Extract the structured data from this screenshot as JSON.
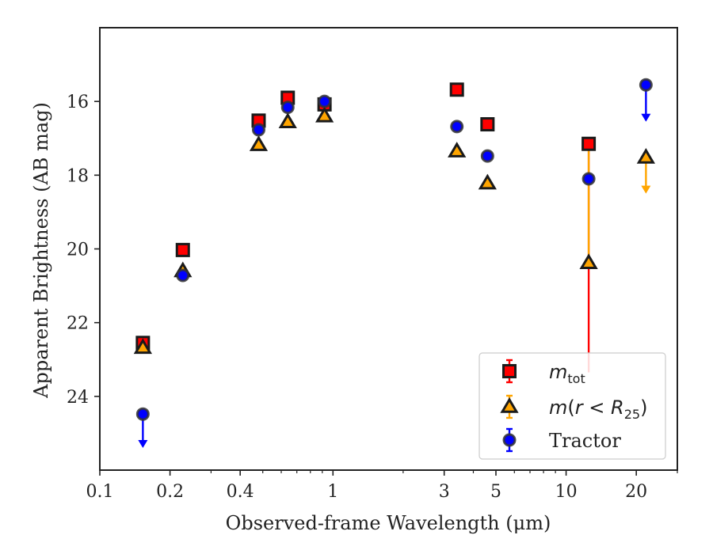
{
  "chart_data": {
    "type": "scatter",
    "xlabel": "Observed-frame Wavelength (μm)",
    "ylabel": "Apparent Brightness (AB mag)",
    "x_scale": "log",
    "xlim": [
      0.1,
      30
    ],
    "ylim": [
      26.0,
      14.0
    ],
    "y_inverted": true,
    "x_ticks": [
      {
        "value": 0.1,
        "label": "0.1"
      },
      {
        "value": 0.2,
        "label": "0.2"
      },
      {
        "value": 0.4,
        "label": "0.4"
      },
      {
        "value": 1,
        "label": "1"
      },
      {
        "value": 3,
        "label": "3"
      },
      {
        "value": 5,
        "label": "5"
      },
      {
        "value": 10,
        "label": "10"
      },
      {
        "value": 20,
        "label": "20"
      }
    ],
    "x_minor_ticks": [
      0.3,
      0.5,
      0.6,
      0.7,
      0.8,
      0.9,
      2,
      4,
      6,
      7,
      8,
      9,
      30
    ],
    "y_ticks": [
      {
        "value": 16,
        "label": "16"
      },
      {
        "value": 18,
        "label": "18"
      },
      {
        "value": 20,
        "label": "20"
      },
      {
        "value": 22,
        "label": "22"
      },
      {
        "value": 24,
        "label": "24"
      }
    ],
    "grid": false,
    "legend_position": "bottom-right",
    "series": [
      {
        "name": "m_tot",
        "marker": "square",
        "color": "#ff0000",
        "edge_color": "#1a1a1a",
        "errorbar_color": "#ff0000",
        "points": [
          {
            "x": 0.153,
            "y": 22.55
          },
          {
            "x": 0.227,
            "y": 20.03
          },
          {
            "x": 0.48,
            "y": 16.52
          },
          {
            "x": 0.64,
            "y": 15.9
          },
          {
            "x": 0.92,
            "y": 16.08
          },
          {
            "x": 3.4,
            "y": 15.68
          },
          {
            "x": 4.6,
            "y": 16.62
          },
          {
            "x": 12.5,
            "y": 17.15,
            "yerr_high": 6.2
          }
        ]
      },
      {
        "name": "m(r<R25)",
        "marker": "triangle",
        "color": "#ffa500",
        "edge_color": "#1a1a1a",
        "errorbar_color": "#ffa500",
        "points": [
          {
            "x": 0.153,
            "y": 22.68
          },
          {
            "x": 0.227,
            "y": 20.6
          },
          {
            "x": 0.48,
            "y": 17.18
          },
          {
            "x": 0.64,
            "y": 16.56
          },
          {
            "x": 0.92,
            "y": 16.4
          },
          {
            "x": 3.4,
            "y": 17.35
          },
          {
            "x": 4.6,
            "y": 18.22
          },
          {
            "x": 12.5,
            "y": 20.38,
            "yerr_low": 3.2
          },
          {
            "x": 22,
            "y": 17.52,
            "upper_limit": true,
            "arrow_to": 18.5
          }
        ]
      },
      {
        "name": "Tractor",
        "marker": "circle",
        "color": "#0000ff",
        "edge_color": "#333333",
        "errorbar_color": "#0000ff",
        "points": [
          {
            "x": 0.153,
            "y": 24.48,
            "upper_limit": true,
            "arrow_to": 25.4
          },
          {
            "x": 0.227,
            "y": 20.72
          },
          {
            "x": 0.48,
            "y": 16.77
          },
          {
            "x": 0.64,
            "y": 16.16
          },
          {
            "x": 0.92,
            "y": 16.0
          },
          {
            "x": 3.4,
            "y": 16.68
          },
          {
            "x": 4.6,
            "y": 17.48
          },
          {
            "x": 12.5,
            "y": 18.1
          },
          {
            "x": 22,
            "y": 15.55,
            "upper_limit": true,
            "arrow_to": 16.55
          }
        ]
      }
    ]
  }
}
